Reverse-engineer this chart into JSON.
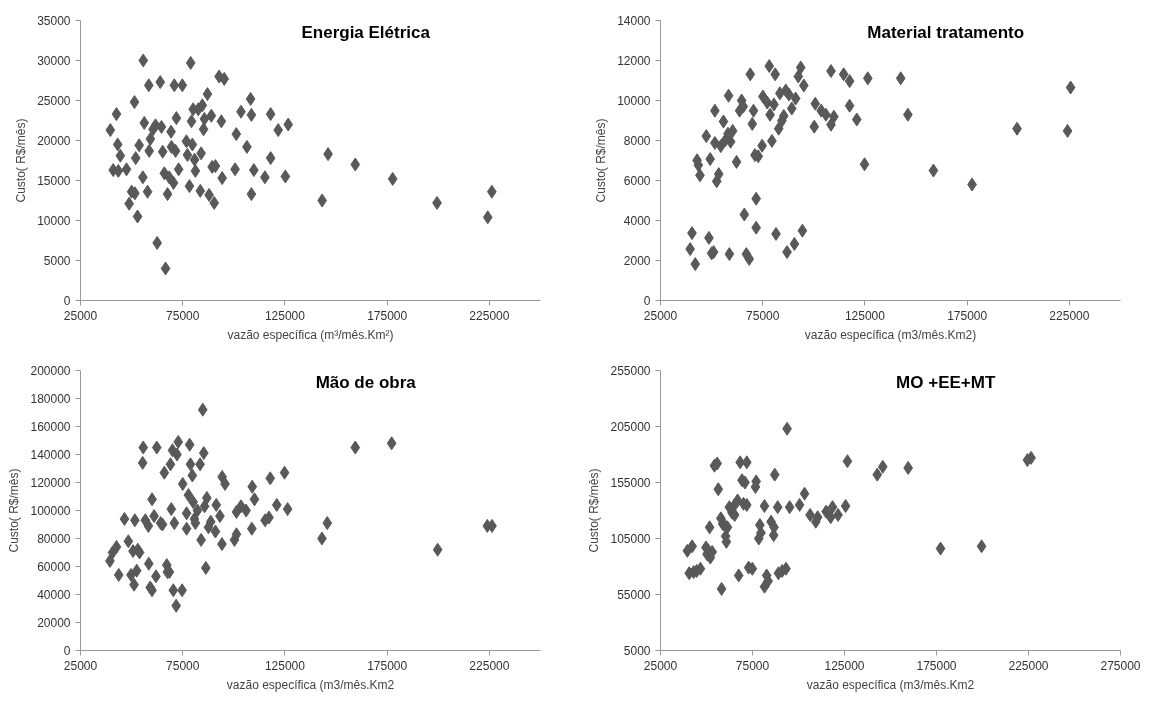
{
  "chart_data": [
    {
      "type": "scatter",
      "title": "Energia Elétrica",
      "xlabel": "vazão específica (m³/mês.Km²)",
      "ylabel": "Custo( R$/mês)",
      "marker": "diamond",
      "color": "#595959",
      "xlim": [
        25000,
        250000
      ],
      "xticks": [
        25000,
        75000,
        125000,
        175000,
        225000
      ],
      "ylim": [
        0,
        35000
      ],
      "yticks": [
        0,
        5000,
        10000,
        15000,
        20000,
        25000,
        30000,
        35000
      ],
      "x": [
        39600,
        41000,
        42600,
        43200,
        43500,
        44500,
        47500,
        48800,
        50000,
        51400,
        51600,
        52000,
        52900,
        53700,
        55500,
        55700,
        56200,
        57800,
        58400,
        58600,
        59200,
        60500,
        61700,
        62500,
        64000,
        64600,
        65200,
        66000,
        66600,
        67600,
        68400,
        69300,
        69500,
        70500,
        70900,
        71500,
        71900,
        73000,
        74800,
        76800,
        77300,
        78300,
        78900,
        79300,
        79700,
        80100,
        80800,
        81200,
        82600,
        83600,
        84000,
        84600,
        85200,
        85600,
        87100,
        87900,
        89000,
        89400,
        90400,
        91000,
        92800,
        93900,
        94300,
        95300,
        100600,
        101200,
        103500,
        106400,
        108200,
        108600,
        108600,
        109800,
        115200,
        118000,
        118000,
        121700,
        125200,
        126600,
        143200,
        146100,
        159400,
        177700,
        199400,
        224200,
        226200
      ],
      "values": [
        21300,
        16300,
        23300,
        19500,
        16200,
        18100,
        16400,
        12100,
        13600,
        24800,
        13400,
        17800,
        10500,
        19400,
        15400,
        30000,
        22200,
        13600,
        26900,
        18700,
        20200,
        21400,
        21900,
        7200,
        27300,
        21700,
        18600,
        15900,
        4000,
        13300,
        15400,
        21100,
        19200,
        14700,
        26900,
        18700,
        22800,
        16400,
        26900,
        19900,
        18200,
        14300,
        29700,
        22400,
        19500,
        23900,
        17600,
        16200,
        23900,
        13700,
        18400,
        24400,
        21400,
        22700,
        25800,
        13200,
        23100,
        16700,
        12200,
        16800,
        28000,
        22400,
        15300,
        27700,
        16400,
        20800,
        23600,
        19200,
        25200,
        23200,
        13300,
        16300,
        15400,
        23300,
        17800,
        21300,
        15500,
        22000,
        12500,
        18300,
        17000,
        15200,
        12200,
        10400,
        13600
      ]
    },
    {
      "type": "scatter",
      "title": "Material tratamento",
      "xlabel": "vazão específica (m3/mês.Km2)",
      "ylabel": "Custo( R$/mês)",
      "marker": "diamond",
      "color": "#595959",
      "xlim": [
        25000,
        250000
      ],
      "xticks": [
        25000,
        75000,
        125000,
        175000,
        225000
      ],
      "ylim": [
        0,
        14000
      ],
      "yticks": [
        0,
        2000,
        4000,
        6000,
        8000,
        10000,
        12000,
        14000
      ],
      "x": [
        39500,
        40400,
        42000,
        42900,
        43500,
        44300,
        47400,
        48700,
        49300,
        50000,
        51000,
        51600,
        51600,
        52500,
        53500,
        54500,
        55800,
        56800,
        58000,
        58300,
        58700,
        59300,
        60300,
        62200,
        63700,
        64700,
        65500,
        66000,
        67000,
        68400,
        68900,
        69900,
        70500,
        71200,
        71800,
        71800,
        72800,
        74700,
        75100,
        77200,
        78200,
        78600,
        79500,
        80500,
        81100,
        81500,
        82800,
        83400,
        84400,
        85300,
        86300,
        86900,
        87800,
        89200,
        90500,
        91100,
        92400,
        93600,
        94400,
        95100,
        100200,
        100700,
        103600,
        105900,
        108400,
        108400,
        109800,
        114600,
        117500,
        117500,
        121000,
        124800,
        126400,
        142500,
        146000,
        158500,
        177400,
        199400,
        224100,
        225600
      ],
      "values": [
        2570,
        3370,
        1820,
        7010,
        6770,
        6260,
        8220,
        3130,
        7070,
        2360,
        2420,
        9490,
        7880,
        5960,
        6320,
        7720,
        8950,
        8020,
        8340,
        10240,
        2320,
        7940,
        8480,
        6930,
        9490,
        10000,
        9700,
        4300,
        2320,
        2080,
        11310,
        8830,
        9490,
        7270,
        5090,
        3640,
        7210,
        7740,
        10200,
        9900,
        11720,
        9290,
        7980,
        9800,
        11310,
        3330,
        8590,
        10360,
        8990,
        9230,
        10500,
        2420,
        10300,
        9600,
        2830,
        10100,
        11200,
        11650,
        3490,
        10750,
        8690,
        9840,
        9490,
        9290,
        8790,
        11470,
        9190,
        11310,
        10970,
        9740,
        9050,
        6810,
        11110,
        11110,
        9290,
        6500,
        5800,
        8590,
        8480,
        10650
      ]
    },
    {
      "type": "scatter",
      "title": "Mão de obra",
      "xlabel": "vazão específica (m3/mês.Km2",
      "ylabel": "Custo( R$/mês)",
      "marker": "diamond",
      "color": "#595959",
      "xlim": [
        25000,
        250000
      ],
      "xticks": [
        25000,
        75000,
        125000,
        175000,
        225000
      ],
      "ylim": [
        0,
        200000
      ],
      "yticks": [
        0,
        20000,
        40000,
        60000,
        80000,
        100000,
        120000,
        140000,
        160000,
        180000,
        200000
      ],
      "x": [
        39400,
        40700,
        42600,
        43700,
        46500,
        48400,
        49700,
        50700,
        51200,
        51600,
        52500,
        53000,
        53900,
        55400,
        55700,
        56700,
        58200,
        58400,
        59100,
        60000,
        60000,
        61000,
        61900,
        62300,
        64200,
        65100,
        66000,
        67200,
        67500,
        68500,
        69000,
        69400,
        70000,
        70400,
        70900,
        71800,
        72200,
        72800,
        74700,
        75000,
        76900,
        76900,
        77800,
        78400,
        78800,
        79700,
        80100,
        80700,
        81200,
        82200,
        83500,
        84000,
        84800,
        85300,
        85700,
        86300,
        86800,
        87600,
        88700,
        91000,
        91400,
        93200,
        94200,
        94300,
        95700,
        100300,
        101300,
        101300,
        103500,
        106000,
        108800,
        109000,
        110100,
        115300,
        117200,
        117800,
        121000,
        124800,
        126300,
        143100,
        145700,
        159400,
        177200,
        199700,
        224000,
        226300
      ],
      "values": [
        64000,
        70000,
        74000,
        54000,
        94000,
        78000,
        54000,
        71000,
        47000,
        93000,
        57000,
        72000,
        70000,
        134000,
        145000,
        93000,
        89000,
        62000,
        45000,
        108000,
        43000,
        96000,
        53000,
        145000,
        91000,
        90000,
        127000,
        61000,
        56000,
        56000,
        133000,
        101000,
        143000,
        43000,
        91000,
        32000,
        140000,
        149000,
        43000,
        119000,
        87000,
        98000,
        111000,
        147000,
        133000,
        125000,
        106000,
        94000,
        91000,
        100000,
        133000,
        79000,
        172000,
        141000,
        103000,
        59000,
        109000,
        88000,
        92000,
        85000,
        104000,
        96000,
        76000,
        124000,
        119000,
        79000,
        99000,
        83000,
        103000,
        100000,
        87000,
        117000,
        108000,
        93000,
        95000,
        123000,
        104000,
        127000,
        101000,
        80000,
        91000,
        145000,
        148000,
        72000,
        89000,
        89000
      ]
    },
    {
      "type": "scatter",
      "title": "MO +EE+MT",
      "xlabel": "vazão específica (m3/mês.Km2",
      "ylabel": "Custo( R$/mês)",
      "marker": "diamond",
      "color": "#595959",
      "xlim": [
        25000,
        275000
      ],
      "xticks": [
        25000,
        75000,
        125000,
        175000,
        225000,
        275000
      ],
      "ylim": [
        5000,
        255000
      ],
      "yticks": [
        5000,
        55000,
        105000,
        155000,
        205000,
        255000
      ],
      "x": [
        39600,
        40600,
        42200,
        43000,
        44600,
        46700,
        49700,
        50300,
        50700,
        51100,
        51700,
        52100,
        53100,
        54300,
        55800,
        56400,
        57800,
        58200,
        58800,
        59800,
        60400,
        60800,
        61400,
        62400,
        63900,
        64900,
        65300,
        66900,
        67500,
        68300,
        69300,
        70100,
        70900,
        71900,
        71900,
        72900,
        74900,
        76600,
        77000,
        78400,
        79000,
        79600,
        81500,
        81500,
        82700,
        83500,
        85100,
        86500,
        86700,
        87100,
        88700,
        89100,
        91100,
        93200,
        93800,
        95200,
        100600,
        103300,
        106300,
        109400,
        110400,
        115000,
        117500,
        118500,
        121500,
        125600,
        126600,
        142800,
        145800,
        159600,
        177200,
        199500,
        224400,
        226400
      ],
      "values": [
        94000,
        74000,
        98000,
        75000,
        76000,
        78000,
        97000,
        91000,
        95000,
        90000,
        115000,
        88000,
        93000,
        170000,
        172000,
        149000,
        123000,
        60000,
        118000,
        117000,
        107000,
        102000,
        115000,
        133000,
        128000,
        134000,
        126000,
        139000,
        72000,
        173000,
        157000,
        136000,
        155000,
        173000,
        135000,
        79000,
        78000,
        151000,
        156000,
        105000,
        117000,
        110000,
        134000,
        62000,
        72000,
        67000,
        120000,
        108000,
        115000,
        162000,
        133000,
        74000,
        76000,
        78000,
        203000,
        133000,
        135000,
        145000,
        126000,
        120000,
        124000,
        129000,
        124000,
        133000,
        126000,
        134000,
        174000,
        162000,
        169000,
        168000,
        96000,
        98000,
        175000,
        177000
      ]
    }
  ]
}
